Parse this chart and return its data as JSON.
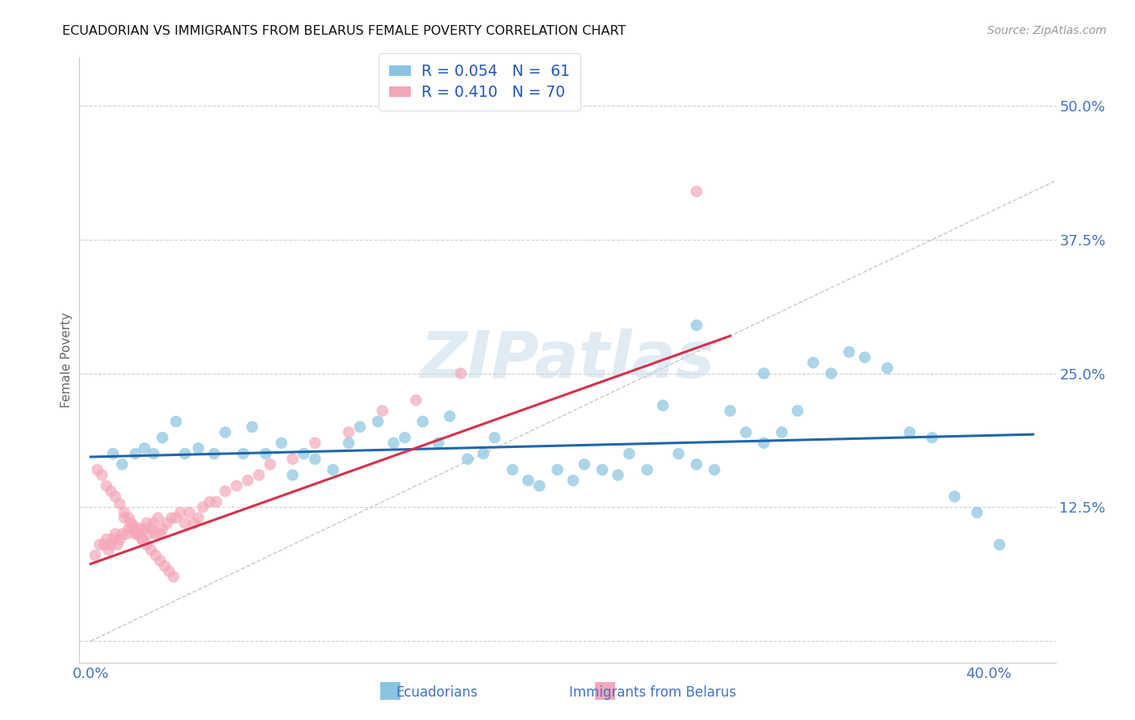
{
  "title": "ECUADORIAN VS IMMIGRANTS FROM BELARUS FEMALE POVERTY CORRELATION CHART",
  "source": "Source: ZipAtlas.com",
  "ylabel": "Female Poverty",
  "xlim": [
    -0.005,
    0.43
  ],
  "ylim": [
    -0.02,
    0.545
  ],
  "x_ticks": [
    0.0,
    0.1,
    0.2,
    0.3,
    0.4
  ],
  "x_tick_labels": [
    "0.0%",
    "",
    "",
    "",
    "40.0%"
  ],
  "y_ticks": [
    0.0,
    0.125,
    0.25,
    0.375,
    0.5
  ],
  "y_tick_labels": [
    "",
    "12.5%",
    "25.0%",
    "37.5%",
    "50.0%"
  ],
  "watermark": "ZIPatlas",
  "color_blue": "#89c4e1",
  "color_pink": "#f4a7b9",
  "line_blue": "#2166ac",
  "line_pink": "#d6304a",
  "diagonal_color": "#c8c8c8",
  "grid_color": "#d0d0d0",
  "blue_line_x": [
    0.0,
    0.42
  ],
  "blue_line_y": [
    0.172,
    0.193
  ],
  "pink_line_x": [
    0.0,
    0.285
  ],
  "pink_line_y": [
    0.072,
    0.285
  ],
  "diag_line_x": [
    0.0,
    0.43
  ],
  "diag_line_y": [
    0.0,
    0.43
  ],
  "blue_x": [
    0.01,
    0.014,
    0.02,
    0.024,
    0.028,
    0.032,
    0.038,
    0.042,
    0.048,
    0.055,
    0.06,
    0.068,
    0.072,
    0.078,
    0.085,
    0.09,
    0.095,
    0.1,
    0.108,
    0.115,
    0.12,
    0.128,
    0.135,
    0.14,
    0.148,
    0.155,
    0.16,
    0.168,
    0.175,
    0.18,
    0.188,
    0.195,
    0.2,
    0.208,
    0.215,
    0.22,
    0.228,
    0.235,
    0.24,
    0.248,
    0.255,
    0.262,
    0.27,
    0.278,
    0.285,
    0.292,
    0.3,
    0.308,
    0.315,
    0.322,
    0.33,
    0.338,
    0.345,
    0.355,
    0.365,
    0.375,
    0.385,
    0.395,
    0.405,
    0.27,
    0.3
  ],
  "blue_y": [
    0.175,
    0.165,
    0.175,
    0.18,
    0.175,
    0.19,
    0.205,
    0.175,
    0.18,
    0.175,
    0.195,
    0.175,
    0.2,
    0.175,
    0.185,
    0.155,
    0.175,
    0.17,
    0.16,
    0.185,
    0.2,
    0.205,
    0.185,
    0.19,
    0.205,
    0.185,
    0.21,
    0.17,
    0.175,
    0.19,
    0.16,
    0.15,
    0.145,
    0.16,
    0.15,
    0.165,
    0.16,
    0.155,
    0.175,
    0.16,
    0.22,
    0.175,
    0.165,
    0.16,
    0.215,
    0.195,
    0.185,
    0.195,
    0.215,
    0.26,
    0.25,
    0.27,
    0.265,
    0.255,
    0.195,
    0.19,
    0.135,
    0.12,
    0.09,
    0.295,
    0.25
  ],
  "pink_x": [
    0.002,
    0.004,
    0.006,
    0.007,
    0.008,
    0.009,
    0.01,
    0.011,
    0.012,
    0.013,
    0.014,
    0.015,
    0.016,
    0.017,
    0.018,
    0.019,
    0.02,
    0.021,
    0.022,
    0.023,
    0.024,
    0.025,
    0.026,
    0.027,
    0.028,
    0.029,
    0.03,
    0.031,
    0.032,
    0.034,
    0.036,
    0.038,
    0.04,
    0.042,
    0.044,
    0.046,
    0.048,
    0.05,
    0.053,
    0.056,
    0.06,
    0.065,
    0.07,
    0.075,
    0.08,
    0.09,
    0.1,
    0.115,
    0.13,
    0.145,
    0.003,
    0.005,
    0.007,
    0.009,
    0.011,
    0.013,
    0.015,
    0.017,
    0.019,
    0.021,
    0.023,
    0.025,
    0.027,
    0.029,
    0.031,
    0.033,
    0.035,
    0.037,
    0.165,
    0.27
  ],
  "pink_y": [
    0.08,
    0.09,
    0.09,
    0.095,
    0.085,
    0.09,
    0.095,
    0.1,
    0.09,
    0.095,
    0.1,
    0.115,
    0.1,
    0.105,
    0.11,
    0.105,
    0.1,
    0.1,
    0.105,
    0.095,
    0.105,
    0.11,
    0.1,
    0.105,
    0.11,
    0.1,
    0.115,
    0.1,
    0.105,
    0.11,
    0.115,
    0.115,
    0.12,
    0.11,
    0.12,
    0.11,
    0.115,
    0.125,
    0.13,
    0.13,
    0.14,
    0.145,
    0.15,
    0.155,
    0.165,
    0.17,
    0.185,
    0.195,
    0.215,
    0.225,
    0.16,
    0.155,
    0.145,
    0.14,
    0.135,
    0.128,
    0.12,
    0.115,
    0.108,
    0.1,
    0.095,
    0.09,
    0.085,
    0.08,
    0.075,
    0.07,
    0.065,
    0.06,
    0.25,
    0.42
  ]
}
